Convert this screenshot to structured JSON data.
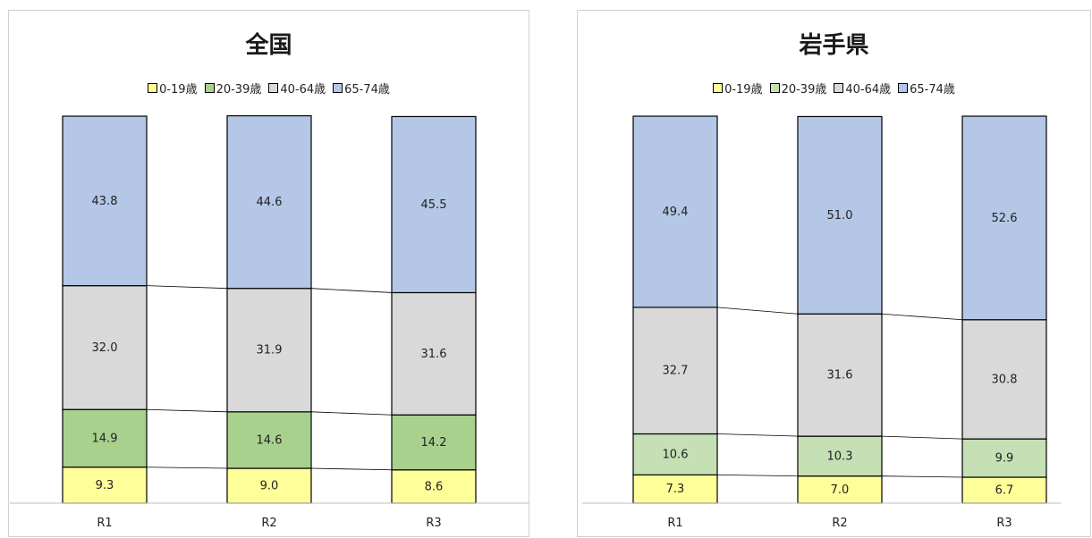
{
  "chart_data": [
    {
      "type": "bar",
      "stacked": true,
      "normalized": true,
      "title": "全国",
      "categories": [
        "R1",
        "R2",
        "R3"
      ],
      "legend_position": "top",
      "ylim": [
        0,
        100
      ],
      "series": [
        {
          "name": "0-19歳",
          "color": "#FFFF99",
          "values": [
            9.3,
            9.0,
            8.6
          ]
        },
        {
          "name": "20-39歳",
          "color": "#A9D18E",
          "values": [
            14.9,
            14.6,
            14.2
          ]
        },
        {
          "name": "40-64歳",
          "color": "#D9D9D9",
          "values": [
            32.0,
            31.9,
            31.6
          ]
        },
        {
          "name": "65-74歳",
          "color": "#B4C7E7",
          "values": [
            43.8,
            44.6,
            45.5
          ]
        }
      ],
      "series_lines": true,
      "grid": false
    },
    {
      "type": "bar",
      "stacked": true,
      "normalized": true,
      "title": "岩手県",
      "categories": [
        "R1",
        "R2",
        "R3"
      ],
      "legend_position": "top",
      "ylim": [
        0,
        100
      ],
      "series": [
        {
          "name": "0-19歳",
          "color": "#FFFF99",
          "values": [
            7.3,
            7.0,
            6.7
          ]
        },
        {
          "name": "20-39歳",
          "color": "#C5E0B4",
          "values": [
            10.6,
            10.3,
            9.9
          ]
        },
        {
          "name": "40-64歳",
          "color": "#D9D9D9",
          "values": [
            32.7,
            31.6,
            30.8
          ]
        },
        {
          "name": "65-74歳",
          "color": "#B4C7E7",
          "values": [
            49.4,
            51.0,
            52.6
          ]
        }
      ],
      "series_lines": true,
      "grid": false
    }
  ]
}
